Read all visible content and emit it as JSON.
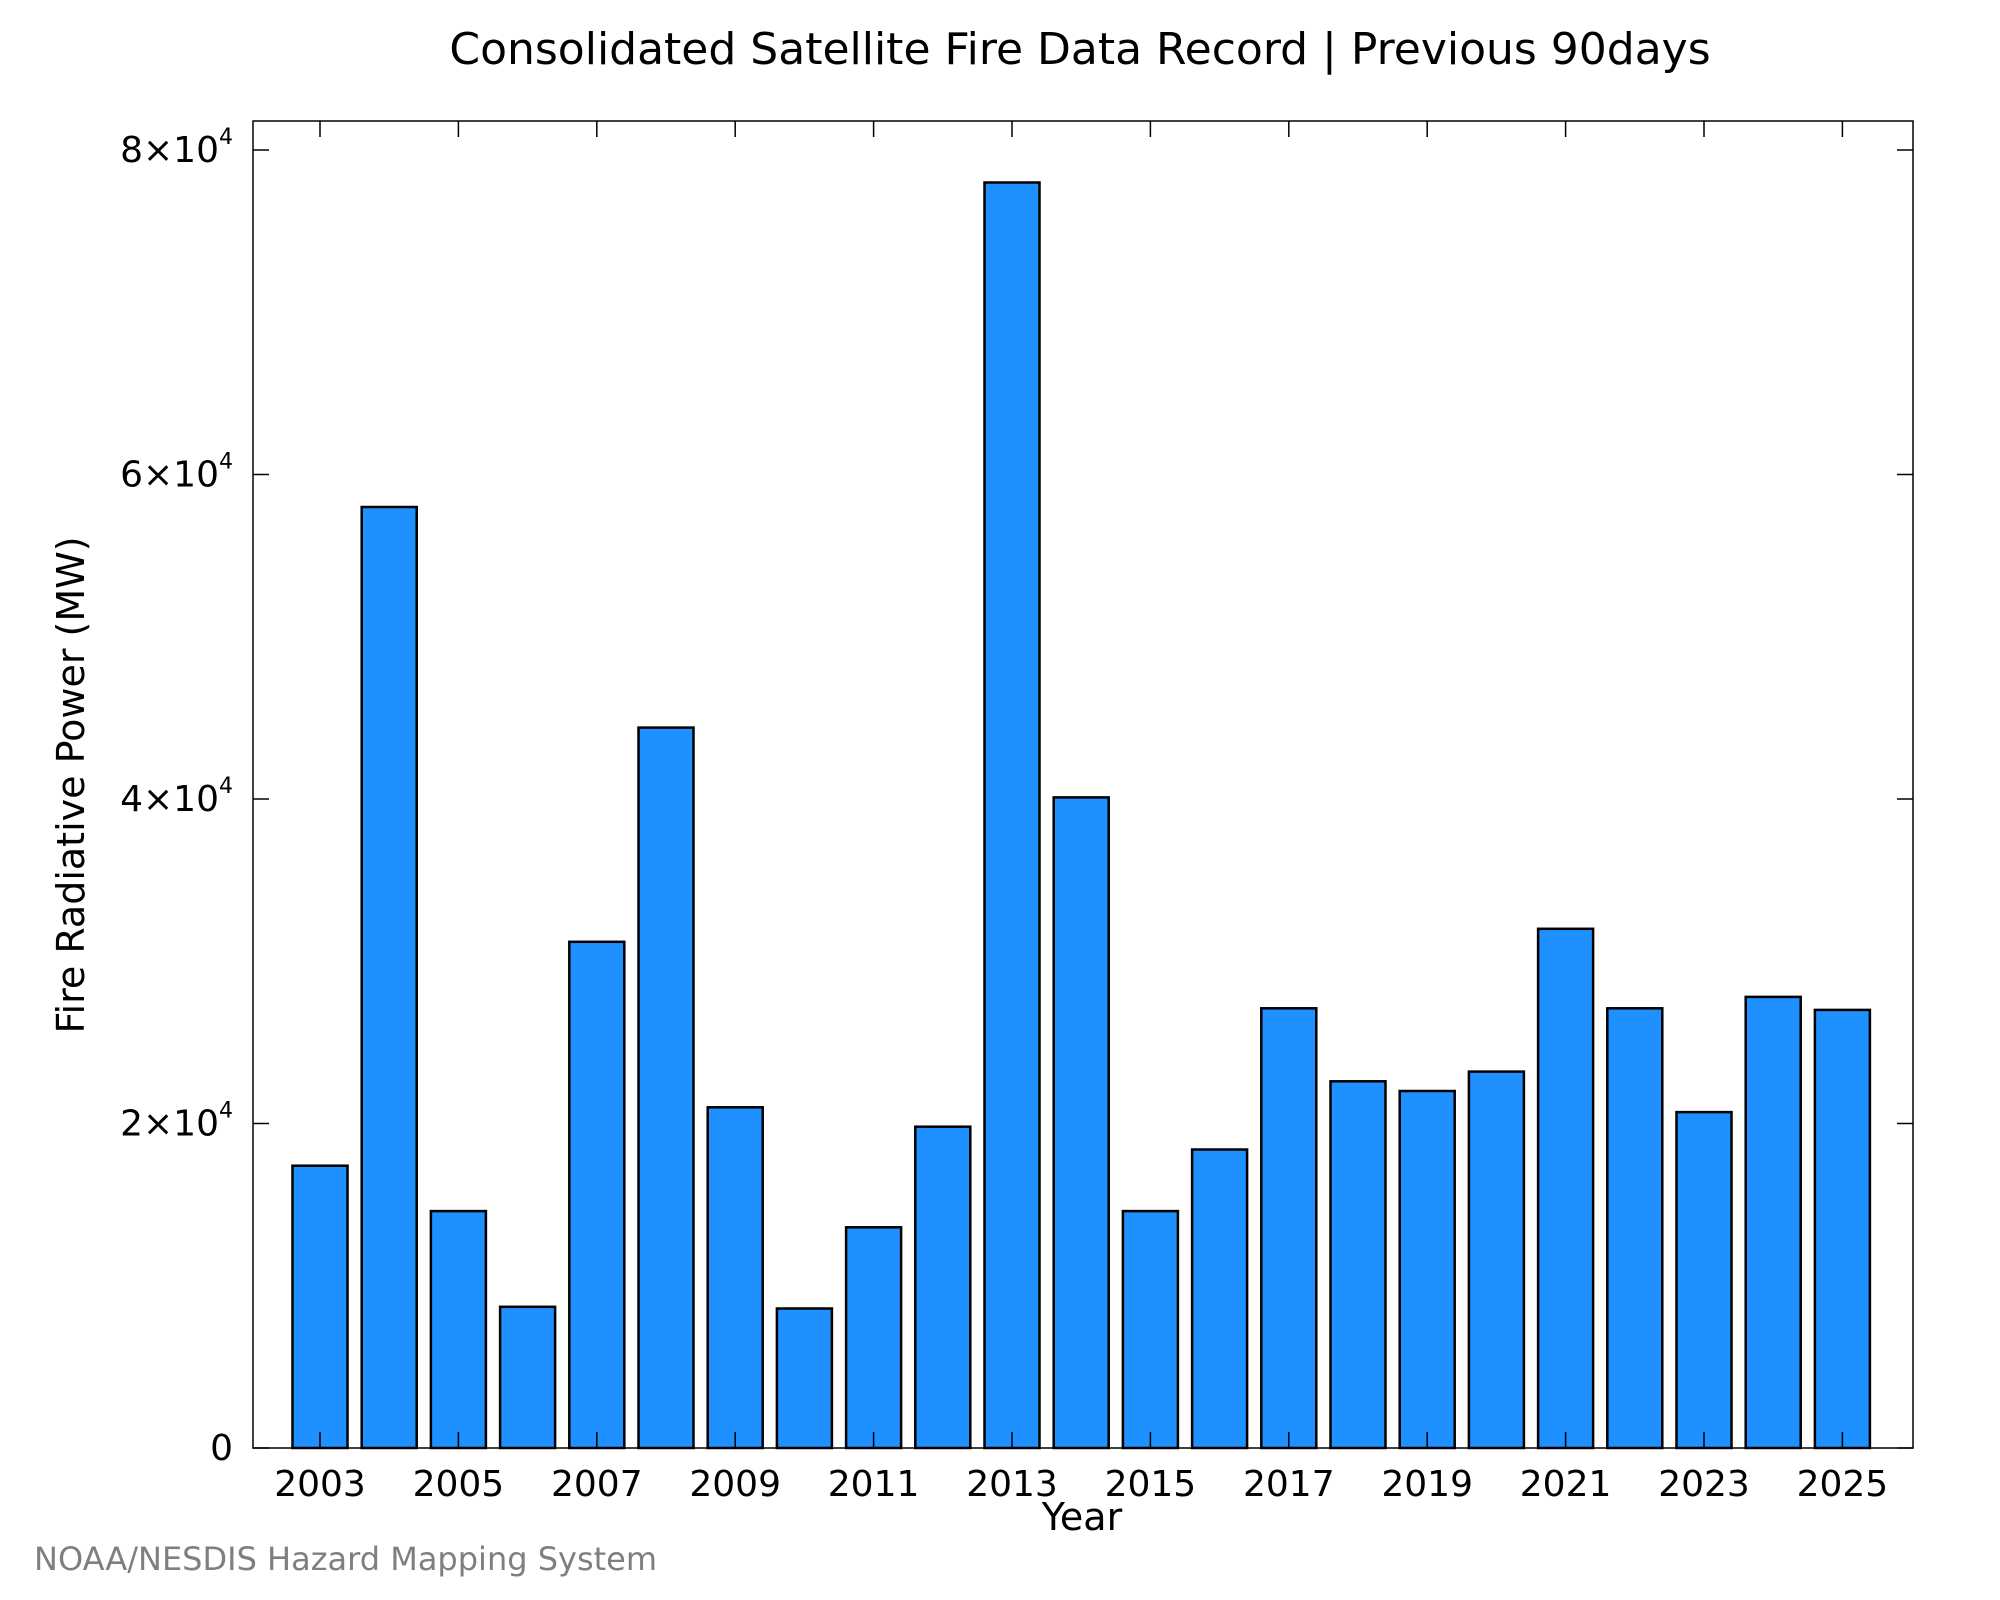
{
  "chart_data": {
    "type": "bar",
    "title": "Consolidated Satellite Fire Data Record | Previous 90days",
    "xlabel": "Year",
    "ylabel": "Fire Radiative Power (MW)",
    "categories": [
      "2003",
      "2004",
      "2005",
      "2006",
      "2007",
      "2008",
      "2009",
      "2010",
      "2011",
      "2012",
      "2013",
      "2014",
      "2015",
      "2016",
      "2017",
      "2018",
      "2019",
      "2020",
      "2021",
      "2022",
      "2023",
      "2024",
      "2025"
    ],
    "x_tick_labels": [
      "2003",
      "2005",
      "2007",
      "2009",
      "2011",
      "2013",
      "2015",
      "2017",
      "2019",
      "2021",
      "2023",
      "2025"
    ],
    "values": [
      17400,
      58000,
      14600,
      8700,
      31200,
      44400,
      21000,
      8600,
      13600,
      19800,
      78000,
      40100,
      14600,
      18400,
      27100,
      22600,
      22000,
      23200,
      32000,
      27100,
      20700,
      27800,
      27000
    ],
    "ylim": [
      0,
      80000
    ],
    "y_ticks": [
      {
        "value": 0,
        "mantissa": "0",
        "exp": ""
      },
      {
        "value": 20000,
        "mantissa": "2×10",
        "exp": "4"
      },
      {
        "value": 40000,
        "mantissa": "4×10",
        "exp": "4"
      },
      {
        "value": 60000,
        "mantissa": "6×10",
        "exp": "4"
      },
      {
        "value": 80000,
        "mantissa": "8×10",
        "exp": "4"
      }
    ],
    "bar_color": "#1e90ff",
    "bar_edge_color": "#000000",
    "grid": false,
    "legend": "none"
  },
  "footer": {
    "credit": "NOAA/NESDIS Hazard Mapping System"
  }
}
